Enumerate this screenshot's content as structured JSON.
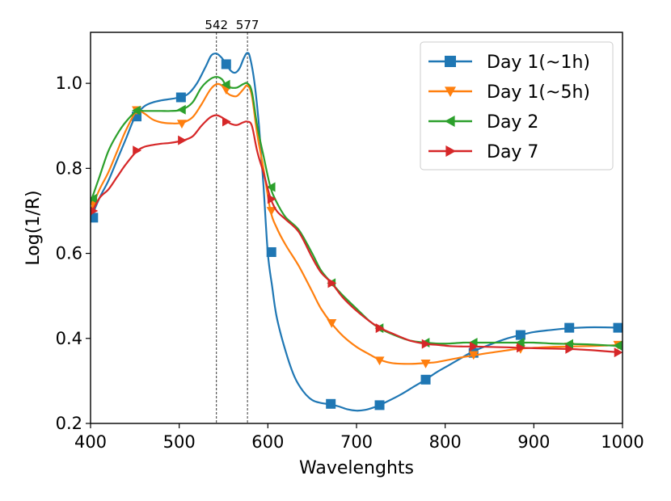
{
  "chart_data": {
    "type": "line",
    "title": "",
    "xlabel": "Wavelenghts",
    "ylabel": "Log(1/R)",
    "xlim": [
      400,
      1000
    ],
    "ylim": [
      0.2,
      1.12
    ],
    "xticks": [
      400,
      500,
      600,
      700,
      800,
      900,
      1000
    ],
    "yticks": [
      0.2,
      0.4,
      0.6,
      0.8,
      1.0
    ],
    "xtick_labels": [
      "400",
      "500",
      "600",
      "700",
      "800",
      "900",
      "1000"
    ],
    "ytick_labels": [
      "0.2",
      "0.4",
      "0.6",
      "0.8",
      "1.0"
    ],
    "grid": false,
    "legend_position": "top-right",
    "annotations": [
      {
        "x": 542,
        "label": "542",
        "style": "dashed vertical line"
      },
      {
        "x": 577,
        "label": "577",
        "style": "dashed vertical line"
      }
    ],
    "series": [
      {
        "name": "Day 1(~1h)",
        "color": "#1f77b4",
        "marker": "square",
        "x": [
          400,
          410,
          420,
          430,
          440,
          450,
          460,
          470,
          480,
          490,
          500,
          510,
          520,
          530,
          536,
          542,
          548,
          553,
          558,
          563,
          568,
          573,
          577,
          580,
          585,
          590,
          595,
          600,
          605,
          610,
          620,
          630,
          640,
          650,
          660,
          670,
          680,
          690,
          700,
          710,
          720,
          725,
          735,
          750,
          765,
          778,
          790,
          805,
          820,
          832,
          850,
          870,
          885,
          900,
          920,
          940,
          960,
          980,
          998
        ],
        "y": [
          0.68,
          0.73,
          0.77,
          0.82,
          0.87,
          0.92,
          0.945,
          0.955,
          0.96,
          0.963,
          0.967,
          0.975,
          1.0,
          1.04,
          1.065,
          1.07,
          1.06,
          1.045,
          1.03,
          1.025,
          1.035,
          1.06,
          1.072,
          1.06,
          1.0,
          0.9,
          0.76,
          0.6,
          0.52,
          0.45,
          0.37,
          0.31,
          0.275,
          0.255,
          0.248,
          0.245,
          0.24,
          0.233,
          0.23,
          0.232,
          0.238,
          0.242,
          0.252,
          0.268,
          0.287,
          0.303,
          0.32,
          0.338,
          0.356,
          0.37,
          0.385,
          0.4,
          0.408,
          0.415,
          0.42,
          0.424,
          0.426,
          0.426,
          0.425
        ],
        "marker_x": [
          403,
          452,
          502,
          553,
          604,
          671,
          726,
          778,
          832,
          885,
          940,
          995
        ],
        "marker_y": [
          0.684,
          0.922,
          0.967,
          1.045,
          0.603,
          0.246,
          0.243,
          0.303,
          0.366,
          0.408,
          0.425,
          0.425
        ]
      },
      {
        "name": "Day 1(~5h)",
        "color": "#ff7f0e",
        "marker": "triangle-down",
        "x": [
          400,
          410,
          420,
          430,
          440,
          452,
          460,
          470,
          480,
          490,
          503,
          515,
          525,
          535,
          542,
          548,
          553,
          558,
          565,
          572,
          577,
          582,
          588,
          595,
          603,
          610,
          620,
          635,
          650,
          660,
          672,
          685,
          700,
          715,
          726,
          740,
          760,
          778,
          790,
          805,
          820,
          832,
          850,
          870,
          885,
          900,
          920,
          940,
          960,
          980,
          998
        ],
        "y": [
          0.7,
          0.75,
          0.79,
          0.84,
          0.89,
          0.935,
          0.93,
          0.915,
          0.908,
          0.906,
          0.907,
          0.92,
          0.95,
          0.985,
          0.998,
          0.995,
          0.98,
          0.972,
          0.97,
          0.985,
          0.995,
          0.97,
          0.88,
          0.8,
          0.7,
          0.66,
          0.62,
          0.57,
          0.51,
          0.47,
          0.435,
          0.405,
          0.38,
          0.362,
          0.35,
          0.342,
          0.34,
          0.342,
          0.344,
          0.35,
          0.356,
          0.36,
          0.366,
          0.372,
          0.376,
          0.378,
          0.38,
          0.381,
          0.382,
          0.383,
          0.385
        ],
        "marker_x": [
          403,
          452,
          503,
          553,
          604,
          672,
          726,
          778,
          832,
          885,
          940,
          995
        ],
        "marker_y": [
          0.717,
          0.937,
          0.905,
          0.985,
          0.7,
          0.436,
          0.348,
          0.341,
          0.361,
          0.375,
          0.381,
          0.385
        ]
      },
      {
        "name": "Day 2",
        "color": "#2ca02c",
        "marker": "triangle-left",
        "x": [
          400,
          410,
          420,
          430,
          440,
          452,
          460,
          470,
          480,
          490,
          503,
          515,
          525,
          535,
          542,
          548,
          553,
          558,
          565,
          572,
          577,
          582,
          588,
          595,
          603,
          610,
          620,
          635,
          650,
          660,
          672,
          685,
          700,
          715,
          726,
          740,
          760,
          778,
          790,
          805,
          820,
          832,
          850,
          870,
          885,
          900,
          920,
          940,
          960,
          980,
          998
        ],
        "y": [
          0.72,
          0.78,
          0.84,
          0.88,
          0.91,
          0.935,
          0.935,
          0.935,
          0.935,
          0.935,
          0.938,
          0.955,
          0.99,
          1.01,
          1.015,
          1.01,
          0.995,
          0.99,
          0.99,
          0.998,
          1.0,
          0.98,
          0.9,
          0.83,
          0.755,
          0.72,
          0.685,
          0.655,
          0.6,
          0.56,
          0.53,
          0.5,
          0.47,
          0.44,
          0.424,
          0.41,
          0.395,
          0.39,
          0.388,
          0.388,
          0.39,
          0.39,
          0.39,
          0.39,
          0.39,
          0.39,
          0.388,
          0.387,
          0.386,
          0.384,
          0.382
        ],
        "marker_x": [
          403,
          452,
          503,
          553,
          604,
          672,
          726,
          778,
          832,
          885,
          940,
          995
        ],
        "marker_y": [
          0.729,
          0.936,
          0.938,
          0.997,
          0.756,
          0.53,
          0.424,
          0.39,
          0.39,
          0.39,
          0.387,
          0.383
        ]
      },
      {
        "name": "Day 7",
        "color": "#d62728",
        "marker": "triangle-right",
        "x": [
          400,
          410,
          420,
          430,
          440,
          452,
          460,
          470,
          480,
          490,
          503,
          515,
          525,
          535,
          542,
          548,
          553,
          558,
          565,
          572,
          577,
          582,
          588,
          595,
          603,
          610,
          620,
          635,
          650,
          660,
          672,
          685,
          700,
          715,
          726,
          740,
          760,
          778,
          790,
          805,
          820,
          832,
          850,
          870,
          885,
          900,
          920,
          940,
          960,
          980,
          998
        ],
        "y": [
          0.69,
          0.73,
          0.75,
          0.78,
          0.81,
          0.84,
          0.85,
          0.855,
          0.858,
          0.86,
          0.865,
          0.875,
          0.9,
          0.92,
          0.925,
          0.92,
          0.912,
          0.905,
          0.902,
          0.908,
          0.91,
          0.9,
          0.84,
          0.79,
          0.73,
          0.7,
          0.68,
          0.65,
          0.59,
          0.555,
          0.53,
          0.495,
          0.465,
          0.44,
          0.425,
          0.412,
          0.395,
          0.387,
          0.385,
          0.382,
          0.381,
          0.381,
          0.38,
          0.379,
          0.378,
          0.377,
          0.376,
          0.375,
          0.373,
          0.37,
          0.367
        ],
        "marker_x": [
          403,
          452,
          503,
          553,
          604,
          672,
          726,
          778,
          832,
          885,
          940,
          995
        ],
        "marker_y": [
          0.7,
          0.842,
          0.866,
          0.91,
          0.728,
          0.53,
          0.424,
          0.387,
          0.381,
          0.378,
          0.375,
          0.367
        ]
      }
    ]
  }
}
